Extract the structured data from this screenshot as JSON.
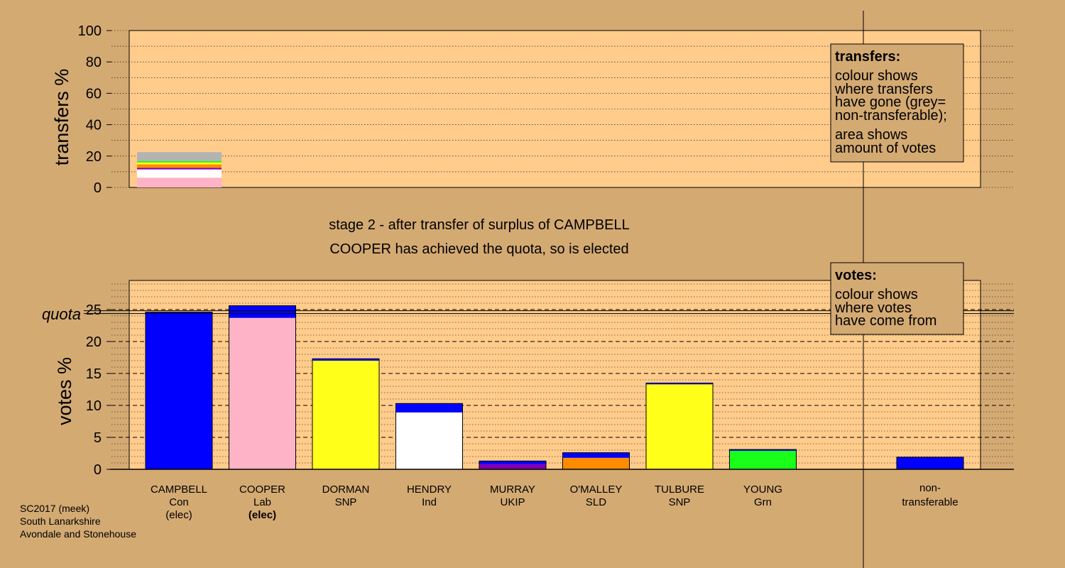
{
  "colors": {
    "background": "#d4aa73",
    "panel": "#ffcc8c",
    "Con": "#0000ff",
    "Lab": "#ffb3c6",
    "SNP": "#ffff19",
    "Ind": "#ffffff",
    "UKIP": "#8000b3",
    "SLD": "#ff8c00",
    "Grn": "#19ff19",
    "non_transferable": "#b3b3b3"
  },
  "stage_text": {
    "line1": "stage 2 - after transfer of surplus of CAMPBELL",
    "line2": "COOPER has achieved the quota, so is elected"
  },
  "legend_transfers": {
    "title": "transfers:",
    "lines": [
      "colour shows",
      "where transfers",
      "have gone (grey=",
      "non-transferable);",
      "area shows",
      "amount of votes"
    ]
  },
  "legend_votes": {
    "title": "votes:",
    "lines": [
      "colour shows",
      "where votes",
      "have come from"
    ]
  },
  "footer": {
    "line1": "SC2017 (meek)",
    "line2": "South Lanarkshire",
    "line3": "Avondale and Stonehouse"
  },
  "chart_data": [
    {
      "type": "bar",
      "title": "",
      "ylabel": "transfers %",
      "ylim": [
        0,
        100
      ],
      "yticks": [
        0,
        20,
        40,
        60,
        80,
        100
      ],
      "grid": true,
      "stack_order_bottom_to_top": [
        "Lab",
        "Ind",
        "UKIP",
        "SLD",
        "SNP",
        "Grn",
        "non-transferable"
      ],
      "transfer_from": "CAMPBELL",
      "segments": [
        {
          "party": "Lab",
          "value": 6.2
        },
        {
          "party": "Ind",
          "value": 5.3
        },
        {
          "party": "UKIP",
          "value": 1.0
        },
        {
          "party": "SLD",
          "value": 2.2
        },
        {
          "party": "SNP",
          "value": 1.2
        },
        {
          "party": "Grn",
          "value": 0.9
        },
        {
          "party": "non-transferable",
          "value": 5.7
        }
      ]
    },
    {
      "type": "bar",
      "title": "",
      "ylabel": "votes %",
      "ylim": [
        0,
        29
      ],
      "yticks": [
        0,
        5,
        10,
        15,
        20,
        25
      ],
      "quota": 24.6,
      "quota_label": "quota",
      "grid": true,
      "categories": [
        "CAMPBELL",
        "COOPER",
        "DORMAN",
        "HENDRY",
        "MURRAY",
        "O'MALLEY",
        "TULBURE",
        "YOUNG",
        "non-transferable"
      ],
      "candidates": [
        {
          "name": "CAMPBELL",
          "party": "Con",
          "status": "(elec)",
          "status_bold": false,
          "segments": [
            {
              "party": "Con",
              "value": 24.6
            }
          ]
        },
        {
          "name": "COOPER",
          "party": "Lab",
          "status": "(elec)",
          "status_bold": true,
          "segments": [
            {
              "party": "Lab",
              "value": 23.7
            },
            {
              "party": "Con",
              "value": 1.9
            }
          ]
        },
        {
          "name": "DORMAN",
          "party": "SNP",
          "status": "",
          "status_bold": false,
          "segments": [
            {
              "party": "SNP",
              "value": 17.0
            },
            {
              "party": "Con",
              "value": 0.3
            }
          ]
        },
        {
          "name": "HENDRY",
          "party": "Ind",
          "status": "",
          "status_bold": false,
          "segments": [
            {
              "party": "Ind",
              "value": 8.9
            },
            {
              "party": "Con",
              "value": 1.4
            }
          ]
        },
        {
          "name": "MURRAY",
          "party": "UKIP",
          "status": "",
          "status_bold": false,
          "segments": [
            {
              "party": "UKIP",
              "value": 0.8
            },
            {
              "party": "Con",
              "value": 0.5
            }
          ]
        },
        {
          "name": "O'MALLEY",
          "party": "SLD",
          "status": "",
          "status_bold": false,
          "segments": [
            {
              "party": "SLD",
              "value": 1.8
            },
            {
              "party": "Con",
              "value": 0.8
            }
          ]
        },
        {
          "name": "TULBURE",
          "party": "SNP",
          "status": "",
          "status_bold": false,
          "segments": [
            {
              "party": "SNP",
              "value": 13.3
            },
            {
              "party": "Con",
              "value": 0.2
            }
          ]
        },
        {
          "name": "YOUNG",
          "party": "Grn",
          "status": "",
          "status_bold": false,
          "segments": [
            {
              "party": "Grn",
              "value": 2.9
            },
            {
              "party": "Con",
              "value": 0.2
            }
          ]
        }
      ],
      "non_transferable": {
        "label_line1": "non-",
        "label_line2": "transferable",
        "segments": [
          {
            "party": "Con",
            "value": 1.9
          }
        ]
      }
    }
  ]
}
